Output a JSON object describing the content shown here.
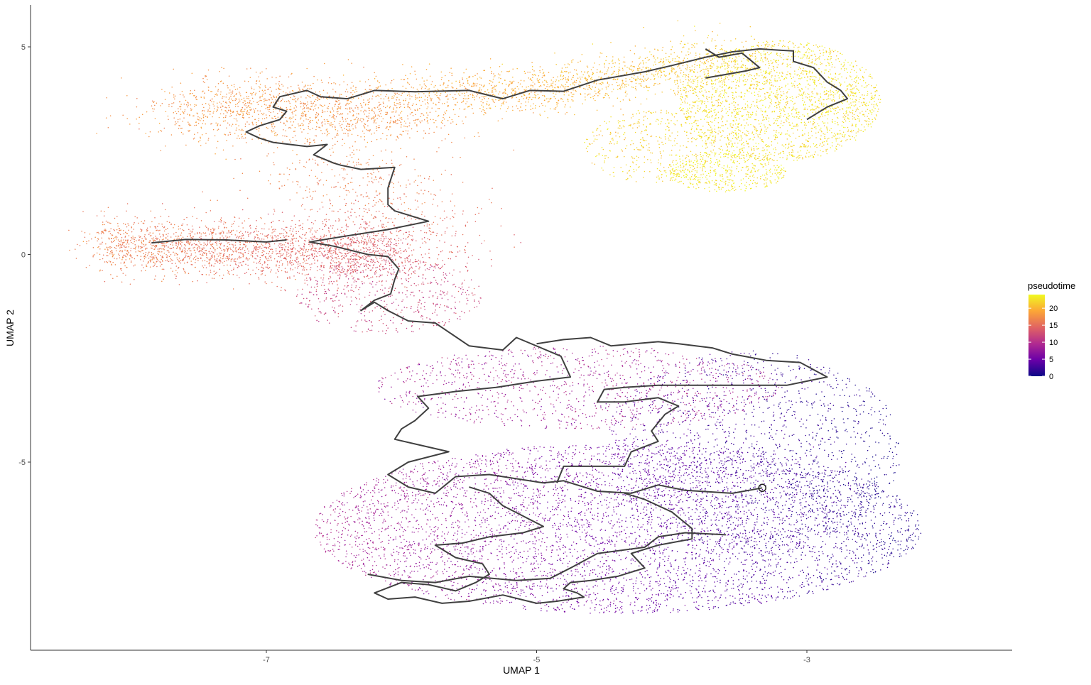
{
  "chart_data": {
    "type": "scatter",
    "title": "",
    "xlabel": "UMAP 1",
    "ylabel": "UMAP 2",
    "xlim": [
      -8.75,
      -1.5
    ],
    "ylim": [
      -9.4,
      6.0
    ],
    "xticks": [
      -7,
      -5,
      -3
    ],
    "yticks": [
      5,
      0,
      -5
    ],
    "grid": false,
    "color_variable": "pseudotime",
    "colorscale": {
      "name": "plasma",
      "range": [
        0,
        24
      ],
      "ticks": [
        0,
        5,
        10,
        15,
        20
      ],
      "stops": [
        "#0d0887",
        "#6a00a8",
        "#b12a90",
        "#e16462",
        "#fca636",
        "#f0f921"
      ]
    },
    "legend_position": "right",
    "point_color_regions": [
      {
        "region": "lower-right",
        "pseudotime_range": [
          0,
          5
        ],
        "color": "#2a04a0"
      },
      {
        "region": "lower-left / middle",
        "pseudotime_range": [
          5,
          12
        ],
        "color": "#8a05b0"
      },
      {
        "region": "left arm",
        "pseudotime_range": [
          14,
          17
        ],
        "color": "#e0405a"
      },
      {
        "region": "upper-left arm",
        "pseudotime_range": [
          17,
          20
        ],
        "color": "#f2843a"
      },
      {
        "region": "upper-right",
        "pseudotime_range": [
          21,
          24
        ],
        "color": "#f7e51f"
      }
    ],
    "trajectory": {
      "line_color": "#404040",
      "root_marker": {
        "x": -3.33,
        "y": -5.62
      },
      "paths": [
        [
          [
            -3.33,
            -5.62
          ],
          [
            -3.55,
            -5.75
          ],
          [
            -3.9,
            -5.68
          ],
          [
            -4.1,
            -5.55
          ],
          [
            -4.3,
            -5.75
          ],
          [
            -4.55,
            -5.7
          ],
          [
            -4.8,
            -5.45
          ],
          [
            -4.95,
            -5.5
          ],
          [
            -5.35,
            -5.3
          ],
          [
            -5.6,
            -5.35
          ],
          [
            -5.75,
            -5.75
          ],
          [
            -5.95,
            -5.6
          ],
          [
            -6.1,
            -5.3
          ],
          [
            -5.95,
            -5.0
          ],
          [
            -5.65,
            -4.75
          ],
          [
            -5.85,
            -4.6
          ],
          [
            -6.05,
            -4.45
          ],
          [
            -6.0,
            -4.2
          ],
          [
            -5.9,
            -4.0
          ],
          [
            -5.8,
            -3.7
          ],
          [
            -5.88,
            -3.42
          ],
          [
            -5.6,
            -3.3
          ],
          [
            -5.3,
            -3.2
          ],
          [
            -5.0,
            -3.05
          ],
          [
            -4.75,
            -2.95
          ],
          [
            -4.82,
            -2.45
          ],
          [
            -5.15,
            -2.0
          ],
          [
            -5.25,
            -2.3
          ],
          [
            -5.5,
            -2.2
          ],
          [
            -5.75,
            -1.65
          ],
          [
            -5.95,
            -1.6
          ],
          [
            -6.1,
            -1.35
          ],
          [
            -6.2,
            -1.15
          ],
          [
            -6.3,
            -1.35
          ],
          [
            -6.2,
            -1.1
          ],
          [
            -6.08,
            -0.95
          ],
          [
            -6.05,
            -0.6
          ],
          [
            -6.02,
            -0.35
          ],
          [
            -6.1,
            -0.05
          ],
          [
            -6.25,
            0.0
          ],
          [
            -6.5,
            0.2
          ],
          [
            -6.68,
            0.3
          ],
          [
            -6.4,
            0.45
          ],
          [
            -6.1,
            0.6
          ],
          [
            -5.8,
            0.8
          ],
          [
            -6.05,
            1.05
          ],
          [
            -6.1,
            1.2
          ],
          [
            -6.1,
            1.6
          ],
          [
            -6.05,
            2.1
          ],
          [
            -6.3,
            2.05
          ],
          [
            -6.45,
            2.15
          ],
          [
            -6.5,
            2.2
          ],
          [
            -6.65,
            2.4
          ],
          [
            -6.55,
            2.65
          ],
          [
            -6.7,
            2.6
          ],
          [
            -6.95,
            2.7
          ],
          [
            -7.05,
            2.8
          ],
          [
            -7.15,
            2.95
          ],
          [
            -7.05,
            3.1
          ],
          [
            -6.9,
            3.25
          ],
          [
            -6.85,
            3.45
          ],
          [
            -6.95,
            3.55
          ],
          [
            -6.9,
            3.8
          ],
          [
            -6.7,
            3.95
          ],
          [
            -6.6,
            3.8
          ],
          [
            -6.4,
            3.75
          ],
          [
            -6.2,
            3.95
          ],
          [
            -5.9,
            3.92
          ],
          [
            -5.5,
            3.95
          ],
          [
            -5.25,
            3.75
          ],
          [
            -5.05,
            3.95
          ],
          [
            -4.8,
            3.93
          ],
          [
            -4.55,
            4.2
          ],
          [
            -4.2,
            4.4
          ],
          [
            -4.0,
            4.55
          ],
          [
            -3.75,
            4.75
          ],
          [
            -3.55,
            4.88
          ],
          [
            -3.35,
            4.95
          ],
          [
            -3.2,
            4.92
          ],
          [
            -3.1,
            4.9
          ],
          [
            -3.1,
            4.65
          ],
          [
            -2.95,
            4.5
          ],
          [
            -2.85,
            4.15
          ],
          [
            -2.75,
            3.95
          ],
          [
            -2.7,
            3.75
          ],
          [
            -2.85,
            3.55
          ],
          [
            -3.0,
            3.25
          ]
        ],
        [
          [
            -7.85,
            0.28
          ],
          [
            -7.6,
            0.36
          ],
          [
            -7.3,
            0.35
          ],
          [
            -7.0,
            0.3
          ],
          [
            -6.85,
            0.35
          ]
        ],
        [
          [
            -3.75,
            4.95
          ],
          [
            -3.65,
            4.75
          ],
          [
            -3.48,
            4.85
          ],
          [
            -3.35,
            4.5
          ],
          [
            -3.45,
            4.42
          ],
          [
            -3.75,
            4.25
          ]
        ],
        [
          [
            -4.85,
            -5.5
          ],
          [
            -4.8,
            -5.1
          ],
          [
            -4.55,
            -5.1
          ],
          [
            -4.35,
            -5.1
          ],
          [
            -4.3,
            -4.75
          ],
          [
            -4.1,
            -4.5
          ],
          [
            -4.15,
            -4.25
          ],
          [
            -4.05,
            -3.85
          ],
          [
            -3.95,
            -3.65
          ],
          [
            -4.1,
            -3.45
          ],
          [
            -4.35,
            -3.55
          ],
          [
            -4.55,
            -3.55
          ],
          [
            -4.5,
            -3.25
          ],
          [
            -4.35,
            -3.2
          ],
          [
            -4.1,
            -3.15
          ],
          [
            -3.55,
            -3.15
          ],
          [
            -3.15,
            -3.15
          ],
          [
            -2.85,
            -2.95
          ],
          [
            -3.05,
            -2.6
          ],
          [
            -3.3,
            -2.55
          ],
          [
            -3.55,
            -2.4
          ],
          [
            -3.7,
            -2.25
          ],
          [
            -3.95,
            -2.15
          ],
          [
            -4.1,
            -2.1
          ],
          [
            -4.45,
            -2.2
          ],
          [
            -4.6,
            -2.0
          ],
          [
            -4.8,
            -2.05
          ],
          [
            -5.0,
            -2.15
          ]
        ],
        [
          [
            -4.35,
            -5.75
          ],
          [
            -4.2,
            -5.9
          ],
          [
            -4.0,
            -6.2
          ],
          [
            -3.85,
            -6.6
          ],
          [
            -3.85,
            -6.85
          ],
          [
            -4.1,
            -7.0
          ],
          [
            -4.3,
            -7.2
          ],
          [
            -4.2,
            -7.55
          ],
          [
            -4.4,
            -7.75
          ],
          [
            -4.6,
            -7.85
          ],
          [
            -4.75,
            -7.9
          ],
          [
            -4.8,
            -8.05
          ],
          [
            -4.7,
            -8.15
          ],
          [
            -4.65,
            -8.25
          ],
          [
            -4.85,
            -8.35
          ],
          [
            -5.0,
            -8.4
          ],
          [
            -5.25,
            -8.2
          ],
          [
            -5.5,
            -8.35
          ],
          [
            -5.7,
            -8.4
          ],
          [
            -5.9,
            -8.25
          ],
          [
            -6.1,
            -8.3
          ],
          [
            -6.2,
            -8.15
          ],
          [
            -6.0,
            -7.9
          ],
          [
            -5.8,
            -7.95
          ],
          [
            -5.6,
            -8.1
          ],
          [
            -5.45,
            -7.9
          ],
          [
            -5.35,
            -7.7
          ],
          [
            -5.4,
            -7.45
          ],
          [
            -5.6,
            -7.3
          ],
          [
            -5.75,
            -7.0
          ],
          [
            -5.55,
            -6.95
          ],
          [
            -5.35,
            -6.8
          ],
          [
            -5.1,
            -6.7
          ],
          [
            -4.95,
            -6.55
          ],
          [
            -5.1,
            -6.3
          ],
          [
            -5.25,
            -6.05
          ],
          [
            -5.35,
            -5.75
          ],
          [
            -5.5,
            -5.6
          ]
        ],
        [
          [
            -3.6,
            -6.75
          ],
          [
            -3.9,
            -6.7
          ],
          [
            -4.1,
            -6.8
          ],
          [
            -4.2,
            -7.05
          ],
          [
            -4.55,
            -7.2
          ],
          [
            -4.75,
            -7.55
          ],
          [
            -4.9,
            -7.8
          ],
          [
            -5.15,
            -7.85
          ],
          [
            -5.5,
            -7.75
          ],
          [
            -5.75,
            -7.9
          ],
          [
            -6.0,
            -7.85
          ],
          [
            -6.25,
            -7.7
          ]
        ]
      ]
    }
  }
}
